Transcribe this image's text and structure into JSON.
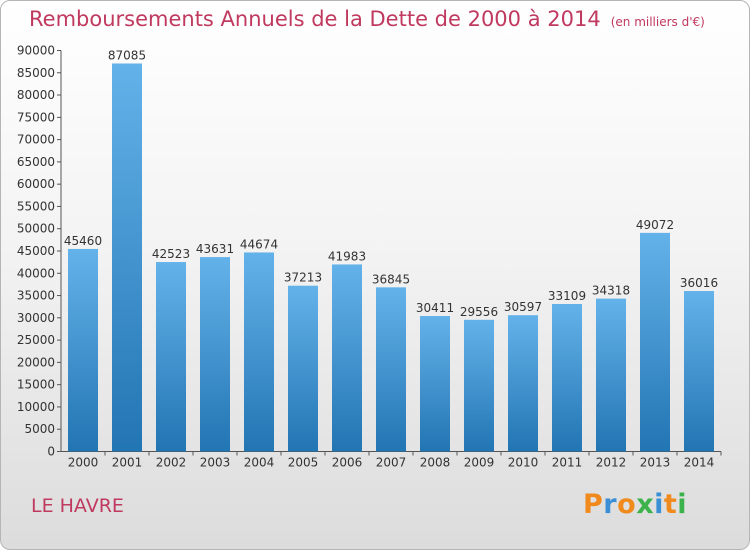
{
  "chart_data": {
    "type": "bar",
    "title": "Remboursements Annuels de la Dette de 2000 à 2014",
    "unit": "(en milliers d'€)",
    "categories": [
      "2000",
      "2001",
      "2002",
      "2003",
      "2004",
      "2005",
      "2006",
      "2007",
      "2008",
      "2009",
      "2010",
      "2011",
      "2012",
      "2013",
      "2014"
    ],
    "values": [
      45460,
      87085,
      42523,
      43631,
      44674,
      37213,
      41983,
      36845,
      30411,
      29556,
      30597,
      33109,
      34318,
      49072,
      36016
    ],
    "ylim": [
      0,
      90000
    ],
    "yticks": [
      0,
      5000,
      10000,
      15000,
      20000,
      25000,
      30000,
      35000,
      40000,
      45000,
      50000,
      55000,
      60000,
      65000,
      70000,
      75000,
      80000,
      85000,
      90000
    ],
    "grid": false,
    "xlabel": "",
    "ylabel": ""
  },
  "footer": {
    "city": "LE HAVRE",
    "brand": "Proxiti"
  },
  "colors": {
    "title": "#c0395f",
    "bar_top": "#64b2ea",
    "bar_bottom": "#2275b3",
    "axis": "#555555",
    "brand": [
      "#f08a1c",
      "#3b8fd4",
      "#f08a1c",
      "#3bb34a",
      "#3b8fd4",
      "#f08a1c",
      "#3bb34a"
    ]
  }
}
